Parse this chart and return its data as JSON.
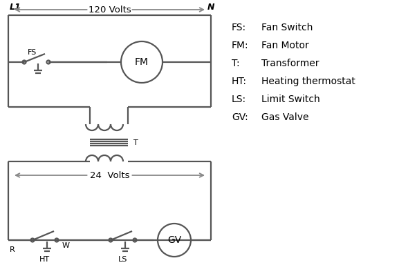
{
  "bg_color": "#ffffff",
  "line_color": "#555555",
  "arrow_color": "#888888",
  "text_color": "#000000",
  "legend_items": [
    [
      "FS:    Fan Switch"
    ],
    [
      "FM:   Fan Motor"
    ],
    [
      "T:       Transformer"
    ],
    [
      "HT:    Heating thermostat"
    ],
    [
      "LS:    Limit Switch"
    ],
    [
      "GV:   Gas Valve"
    ]
  ],
  "legend_abbr": [
    "FS:",
    "FM:",
    "T:",
    "HT:",
    "LS:",
    "GV:"
  ],
  "legend_desc": [
    "Fan Switch",
    "Fan Motor",
    "Transformer",
    "Heating thermostat",
    "Limit Switch",
    "Gas Valve"
  ],
  "labels": {
    "L1": "L1",
    "N": "N",
    "120V": "120 Volts",
    "24V": "24  Volts",
    "FS": "FS",
    "FM": "FM",
    "T": "T",
    "R": "R",
    "W": "W",
    "HT": "HT",
    "LS": "LS",
    "GV": "GV"
  }
}
